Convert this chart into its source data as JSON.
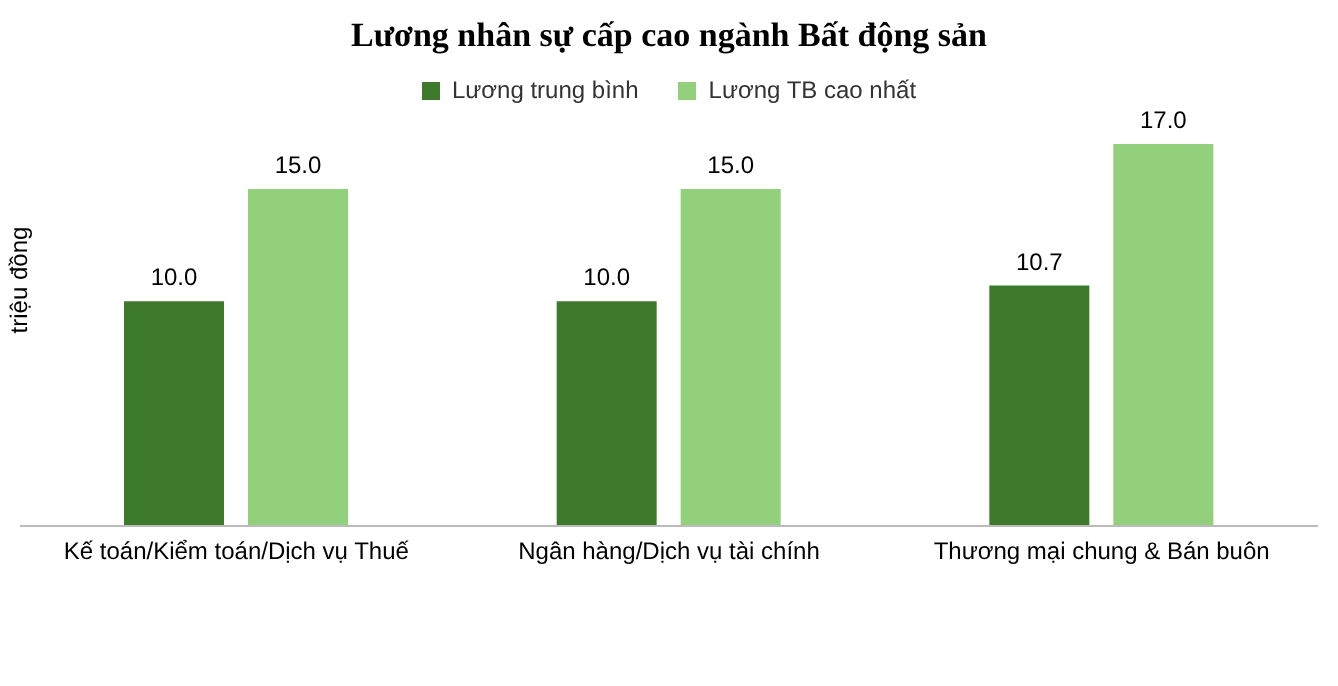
{
  "chart_data": {
    "type": "bar",
    "title": "Lương nhân sự cấp cao ngành Bất động sản",
    "ylabel": "triệu đồng",
    "categories": [
      "Kế toán/Kiểm toán/Dịch vụ Thuế",
      "Ngân hàng/Dịch vụ tài chính",
      "Thương mại chung & Bán buôn"
    ],
    "series": [
      {
        "name": "Lương trung bình",
        "color": "#3e7a2c",
        "values": [
          10.0,
          10.0,
          10.7
        ],
        "value_labels": [
          "10.0",
          "10.0",
          "10.7"
        ]
      },
      {
        "name": "Lương TB cao nhất",
        "color": "#92d07b",
        "values": [
          15.0,
          15.0,
          17.0
        ],
        "value_labels": [
          "15.0",
          "15.0",
          "17.0"
        ]
      }
    ],
    "legend": "top",
    "grid": false
  }
}
